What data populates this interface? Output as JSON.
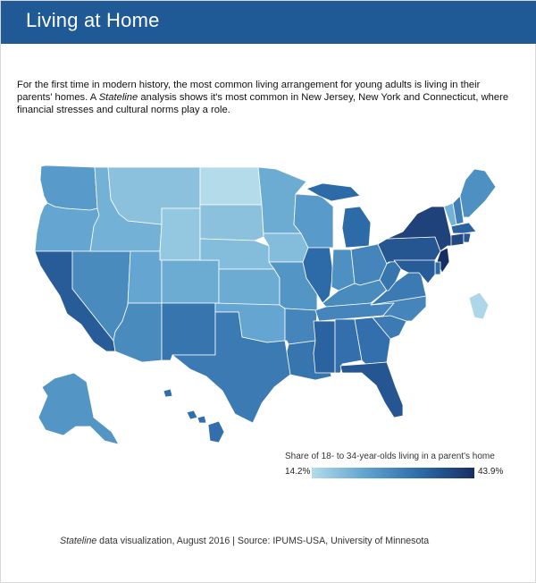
{
  "header": {
    "title": "Living at Home"
  },
  "intro": {
    "part1": "For the first time in modern history, the most common living arrangement for young adults is living in their parents' homes. A ",
    "brand": "Stateline",
    "part2": " analysis shows it's most common in New Jersey, New York and Connecticut, where financial stresses and cultural norms play a role."
  },
  "legend": {
    "title": "Share of 18- to 34-year-olds living in a parent's home",
    "min_label": "14.2%",
    "max_label": "43.9%",
    "min_color": "#b3dbea",
    "max_color": "#172e63"
  },
  "footer": {
    "brand": "Stateline",
    "rest": " data visualization, August 2016 | Source: IPUMS-USA, University of Minnesota"
  },
  "colors": {
    "header_bg": "#1f5a96",
    "state_border": "#ffffff"
  },
  "map_data": {
    "type": "choropleth",
    "unit": "percent",
    "range": [
      14.2,
      43.9
    ],
    "states": [
      {
        "id": "WA",
        "value": 26
      },
      {
        "id": "OR",
        "value": 24
      },
      {
        "id": "CA",
        "value": 37
      },
      {
        "id": "NV",
        "value": 29
      },
      {
        "id": "ID",
        "value": 22
      },
      {
        "id": "MT",
        "value": 19
      },
      {
        "id": "WY",
        "value": 18
      },
      {
        "id": "UT",
        "value": 24
      },
      {
        "id": "AZ",
        "value": 29
      },
      {
        "id": "CO",
        "value": 23
      },
      {
        "id": "NM",
        "value": 33
      },
      {
        "id": "ND",
        "value": 14.2
      },
      {
        "id": "SD",
        "value": 19
      },
      {
        "id": "NE",
        "value": 20
      },
      {
        "id": "KS",
        "value": 23
      },
      {
        "id": "OK",
        "value": 24
      },
      {
        "id": "TX",
        "value": 32
      },
      {
        "id": "MN",
        "value": 23
      },
      {
        "id": "IA",
        "value": 20
      },
      {
        "id": "MO",
        "value": 27
      },
      {
        "id": "AR",
        "value": 30
      },
      {
        "id": "LA",
        "value": 33
      },
      {
        "id": "WI",
        "value": 26
      },
      {
        "id": "IL",
        "value": 35
      },
      {
        "id": "MI",
        "value": 35
      },
      {
        "id": "IN",
        "value": 28
      },
      {
        "id": "OH",
        "value": 30
      },
      {
        "id": "KY",
        "value": 29
      },
      {
        "id": "TN",
        "value": 30
      },
      {
        "id": "MS",
        "value": 36
      },
      {
        "id": "AL",
        "value": 34
      },
      {
        "id": "GA",
        "value": 34
      },
      {
        "id": "FL",
        "value": 38
      },
      {
        "id": "SC",
        "value": 32
      },
      {
        "id": "NC",
        "value": 30
      },
      {
        "id": "VA",
        "value": 32
      },
      {
        "id": "WV",
        "value": 33
      },
      {
        "id": "PA",
        "value": 38
      },
      {
        "id": "NY",
        "value": 41
      },
      {
        "id": "VT",
        "value": 22
      },
      {
        "id": "NH",
        "value": 31
      },
      {
        "id": "ME",
        "value": 28
      },
      {
        "id": "MA",
        "value": 36
      },
      {
        "id": "CT",
        "value": 40
      },
      {
        "id": "RI",
        "value": 38
      },
      {
        "id": "NJ",
        "value": 43.9
      },
      {
        "id": "DE",
        "value": 35
      },
      {
        "id": "MD",
        "value": 37
      },
      {
        "id": "DC",
        "value": 15
      },
      {
        "id": "AK",
        "value": 27
      },
      {
        "id": "HI",
        "value": 34
      }
    ]
  }
}
